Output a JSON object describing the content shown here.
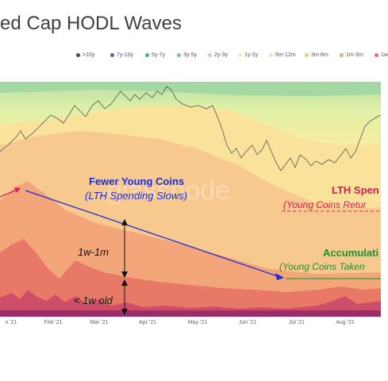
{
  "title": "ed Cap HODL Waves",
  "watermark": "glassnode",
  "chart_data": {
    "type": "area",
    "stacked": true,
    "legend_position": "top",
    "legend": [
      {
        "name": ">10y",
        "color": "#4b3f8c"
      },
      {
        "name": "7y-10y",
        "color": "#4a66a3"
      },
      {
        "name": "5y-7y",
        "color": "#4aa2a9"
      },
      {
        "name": "3y-5y",
        "color": "#74c7a3"
      },
      {
        "name": "2y-3y",
        "color": "#b6dfa0"
      },
      {
        "name": "1y-2y",
        "color": "#e9f09e"
      },
      {
        "name": "6m-12m",
        "color": "#fbe29a"
      },
      {
        "name": "3m-6m",
        "color": "#f7c58c"
      },
      {
        "name": "1m-3m",
        "color": "#f0a176"
      },
      {
        "name": "1w",
        "color": "#e27461"
      }
    ],
    "x_ticks": [
      "n '21",
      "Feb '21",
      "Mar '21",
      "Apr '21",
      "May '21",
      "Jun '21",
      "Jul '21",
      "Aug '21"
    ],
    "annotations": {
      "fewer_young": "Fewer Young Coins",
      "lth_slows": "(LTH Spending Slows)",
      "lth_spend": "LTH Spen",
      "young_return": "(Young Coins Retur",
      "accumulation": "Accumulati",
      "young_taken": "(Young Coins Taken",
      "band_1w1m": "1w-1m",
      "band_lt1w": "< 1w old"
    }
  }
}
